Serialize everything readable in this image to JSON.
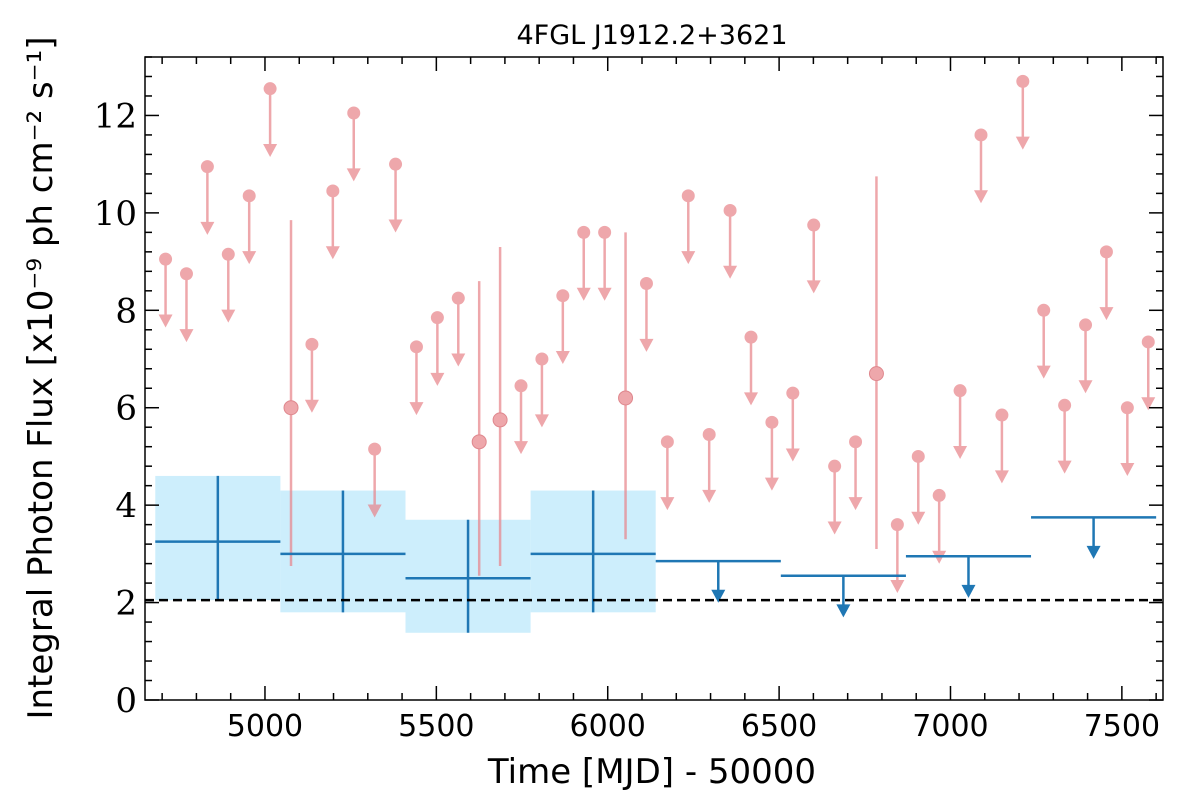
{
  "chart_data": {
    "type": "scatter",
    "title": "4FGL J1912.2+3621",
    "xlabel": "Time [MJD] - 50000",
    "ylabel": "Integral Photon Flux [x10⁻⁹ ph cm⁻² s⁻¹]",
    "xlim": [
      4650,
      7620
    ],
    "ylim": [
      0,
      13.2
    ],
    "xticks": [
      5000,
      5500,
      6000,
      6500,
      7000,
      7500
    ],
    "yticks": [
      0,
      2,
      4,
      6,
      8,
      10,
      12
    ],
    "xtick_labels": [
      "5000",
      "5500",
      "6000",
      "6500",
      "7000",
      "7500"
    ],
    "ytick_labels": [
      "0",
      "2",
      "4",
      "6",
      "8",
      "10",
      "12"
    ],
    "reference_line": {
      "y": 2.05,
      "style": "dashed",
      "color": "#000000"
    },
    "colors": {
      "fine": "#e8868c",
      "coarse": "#1f77b4",
      "band": "#cdeefc"
    },
    "series": [
      {
        "bin_width_days": 61,
        "upper_limits": [
          {
            "x": 4710,
            "y": 9.05
          },
          {
            "x": 4771,
            "y": 8.75
          },
          {
            "x": 4832,
            "y": 10.95
          },
          {
            "x": 4893,
            "y": 9.15
          },
          {
            "x": 4954,
            "y": 10.35
          },
          {
            "x": 5015,
            "y": 12.55
          },
          {
            "x": 5137,
            "y": 7.3
          },
          {
            "x": 5198,
            "y": 10.45
          },
          {
            "x": 5259,
            "y": 12.05
          },
          {
            "x": 5320,
            "y": 5.15
          },
          {
            "x": 5381,
            "y": 11.0
          },
          {
            "x": 5442,
            "y": 7.25
          },
          {
            "x": 5503,
            "y": 7.85
          },
          {
            "x": 5564,
            "y": 8.25
          },
          {
            "x": 5747,
            "y": 6.45
          },
          {
            "x": 5808,
            "y": 7.0
          },
          {
            "x": 5869,
            "y": 8.3
          },
          {
            "x": 5930,
            "y": 9.6
          },
          {
            "x": 5991,
            "y": 9.6
          },
          {
            "x": 6113,
            "y": 8.55
          },
          {
            "x": 6174,
            "y": 5.3
          },
          {
            "x": 6235,
            "y": 10.35
          },
          {
            "x": 6296,
            "y": 5.45
          },
          {
            "x": 6357,
            "y": 10.05
          },
          {
            "x": 6418,
            "y": 7.45
          },
          {
            "x": 6479,
            "y": 5.7
          },
          {
            "x": 6540,
            "y": 6.3
          },
          {
            "x": 6601,
            "y": 9.75
          },
          {
            "x": 6662,
            "y": 4.8
          },
          {
            "x": 6723,
            "y": 5.3
          },
          {
            "x": 6845,
            "y": 3.6
          },
          {
            "x": 6906,
            "y": 5.0
          },
          {
            "x": 6967,
            "y": 4.2
          },
          {
            "x": 7028,
            "y": 6.35
          },
          {
            "x": 7089,
            "y": 11.6
          },
          {
            "x": 7150,
            "y": 5.85
          },
          {
            "x": 7211,
            "y": 12.7
          },
          {
            "x": 7272,
            "y": 8.0
          },
          {
            "x": 7333,
            "y": 6.05
          },
          {
            "x": 7394,
            "y": 7.7
          },
          {
            "x": 7455,
            "y": 9.2
          },
          {
            "x": 7516,
            "y": 6.0
          },
          {
            "x": 7577,
            "y": 7.35
          }
        ],
        "detections": [
          {
            "x": 5076,
            "y": 6.0,
            "ylo": 2.75,
            "yhi": 9.85
          },
          {
            "x": 5625,
            "y": 5.3,
            "ylo": 2.55,
            "yhi": 8.6
          },
          {
            "x": 5686,
            "y": 5.75,
            "ylo": 2.75,
            "yhi": 9.3
          },
          {
            "x": 6052,
            "y": 6.2,
            "ylo": 3.3,
            "yhi": 9.6
          },
          {
            "x": 6784,
            "y": 6.7,
            "ylo": 3.1,
            "yhi": 10.75
          }
        ]
      },
      {
        "detections": [
          {
            "x0": 4680,
            "x1": 5045,
            "y": 3.25,
            "ylo": 2.05,
            "yhi": 4.6,
            "band_lo": 2.05,
            "band_hi": 4.6
          },
          {
            "x0": 5045,
            "x1": 5410,
            "y": 3.0,
            "ylo": 1.8,
            "yhi": 4.3,
            "band_lo": 1.8,
            "band_hi": 4.3
          },
          {
            "x0": 5410,
            "x1": 5775,
            "y": 2.5,
            "ylo": 1.38,
            "yhi": 3.7,
            "band_lo": 1.38,
            "band_hi": 3.7
          },
          {
            "x0": 5775,
            "x1": 6140,
            "y": 3.0,
            "ylo": 1.8,
            "yhi": 4.3,
            "band_lo": 1.8,
            "band_hi": 4.3
          }
        ],
        "upper_limits": [
          {
            "x0": 6140,
            "x1": 6505,
            "y": 2.85
          },
          {
            "x0": 6505,
            "x1": 6870,
            "y": 2.55
          },
          {
            "x0": 6870,
            "x1": 7235,
            "y": 2.95
          },
          {
            "x0": 7235,
            "x1": 7600,
            "y": 3.75
          }
        ]
      }
    ]
  }
}
